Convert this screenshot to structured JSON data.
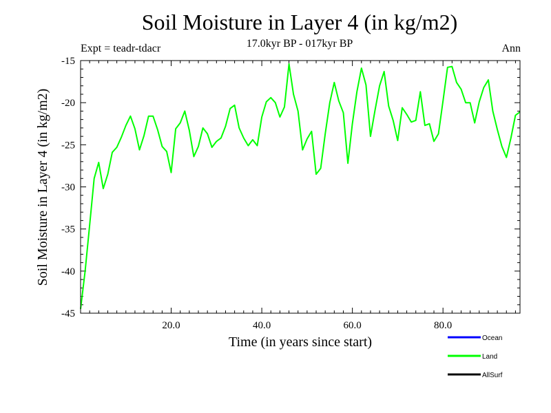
{
  "page": {
    "title": "Soil Moisture in Layer 4 (in kg/m2)",
    "subtitle": "17.0kyr BP - 017kyr BP",
    "expt_label": "Expt = teadr-tdacr",
    "period_label": "Ann"
  },
  "chart_data": {
    "type": "line",
    "title": "Soil Moisture in Layer 4 (in kg/m2)",
    "xlabel": "Time (in years since start)",
    "ylabel": "Soil Moisture in Layer 4 (in kg/m2)",
    "xlim": [
      0,
      97
    ],
    "ylim": [
      -45,
      -15
    ],
    "xticks": [
      20,
      40,
      60,
      80
    ],
    "xtick_labels": [
      "20.0",
      "40.0",
      "60.0",
      "80.0"
    ],
    "yticks": [
      -45,
      -40,
      -35,
      -30,
      -25,
      -20,
      -15
    ],
    "ytick_labels": [
      "-45",
      "-40",
      "-35",
      "-30",
      "-25",
      "-20",
      "-15"
    ],
    "x": [
      0,
      1,
      2,
      3,
      4,
      5,
      6,
      7,
      8,
      9,
      10,
      11,
      12,
      13,
      14,
      15,
      16,
      17,
      18,
      19,
      20,
      21,
      22,
      23,
      24,
      25,
      26,
      27,
      28,
      29,
      30,
      31,
      32,
      33,
      34,
      35,
      36,
      37,
      38,
      39,
      40,
      41,
      42,
      43,
      44,
      45,
      46,
      47,
      48,
      49,
      50,
      51,
      52,
      53,
      54,
      55,
      56,
      57,
      58,
      59,
      60,
      61,
      62,
      63,
      64,
      65,
      66,
      67,
      68,
      69,
      70,
      71,
      72,
      73,
      74,
      75,
      76,
      77,
      78,
      79,
      80,
      81,
      82,
      83,
      84,
      85,
      86,
      87,
      88,
      89,
      90,
      91,
      92,
      93,
      94,
      95,
      96,
      97
    ],
    "series": [
      {
        "name": "Land",
        "color": "#00ff00",
        "values": [
          -44.5,
          -40.0,
          -34.5,
          -29.0,
          -27.1,
          -30.2,
          -28.5,
          -25.9,
          -25.3,
          -24.1,
          -22.7,
          -21.6,
          -23.1,
          -25.6,
          -23.9,
          -21.6,
          -21.6,
          -23.2,
          -25.2,
          -25.8,
          -28.3,
          -23.1,
          -22.4,
          -21.0,
          -23.3,
          -26.4,
          -25.2,
          -23.0,
          -23.7,
          -25.3,
          -24.6,
          -24.2,
          -22.8,
          -20.7,
          -20.3,
          -23.0,
          -24.2,
          -25.1,
          -24.4,
          -25.1,
          -21.7,
          -19.9,
          -19.4,
          -20.0,
          -21.7,
          -20.5,
          -15.4,
          -19.0,
          -21.0,
          -25.6,
          -24.3,
          -23.4,
          -28.5,
          -27.8,
          -23.7,
          -20.0,
          -17.6,
          -19.8,
          -21.2,
          -27.2,
          -22.5,
          -18.7,
          -15.9,
          -17.9,
          -24.0,
          -20.9,
          -18.0,
          -16.3,
          -20.4,
          -22.1,
          -24.5,
          -20.6,
          -21.4,
          -22.3,
          -22.1,
          -18.7,
          -22.7,
          -22.5,
          -24.6,
          -23.7,
          -19.8,
          -15.8,
          -15.7,
          -17.6,
          -18.4,
          -20.0,
          -20.0,
          -22.4,
          -19.9,
          -18.2,
          -17.3,
          -21.0,
          -23.2,
          -25.2,
          -26.5,
          -24.2,
          -21.5,
          -21.1
        ]
      }
    ],
    "legend": [
      {
        "label": "Ocean",
        "color": "#0000ff"
      },
      {
        "label": "Land",
        "color": "#00ff00"
      },
      {
        "label": "AllSurf",
        "color": "#000000"
      }
    ],
    "legend_position": "bottom-right",
    "grid": false
  }
}
